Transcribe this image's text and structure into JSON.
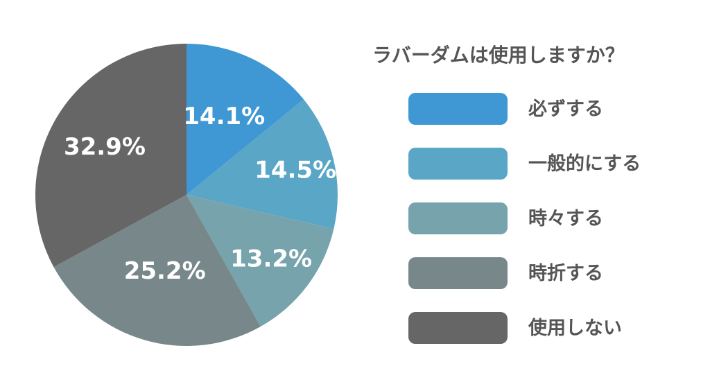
{
  "chart_data": {
    "type": "pie",
    "title": "ラバーダムは使用しますか？",
    "legend_position": "right",
    "categories": [
      "必ずする",
      "一般的にする",
      "時々する",
      "時折する",
      "使用しない"
    ],
    "values": [
      14.1,
      14.5,
      13.2,
      25.2,
      32.9
    ],
    "value_labels": [
      "14.1%",
      "14.5%",
      "13.2%",
      "25.2%",
      "32.9%"
    ],
    "colors": [
      "#3f97d4",
      "#5aa6c6",
      "#77a3ac",
      "#78888a",
      "#666666"
    ]
  }
}
